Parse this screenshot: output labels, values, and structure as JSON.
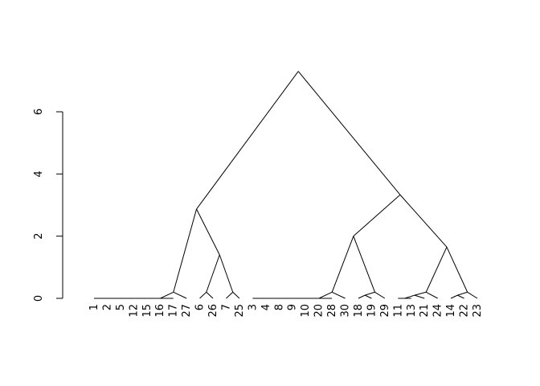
{
  "chart_data": {
    "type": "dendrogram",
    "title": "",
    "xlabel": "",
    "ylabel": "",
    "ylim": [
      0,
      7.5
    ],
    "y_ticks": [
      0,
      2,
      4,
      6
    ],
    "y_tick_labels": [
      "0",
      "2",
      "4",
      "6"
    ],
    "leaves": [
      "1",
      "2",
      "5",
      "12",
      "15",
      "16",
      "17",
      "27",
      "6",
      "26",
      "7",
      "25",
      "3",
      "4",
      "8",
      "9",
      "10",
      "20",
      "28",
      "30",
      "18",
      "19",
      "29",
      "11",
      "13",
      "21",
      "24",
      "14",
      "22",
      "23"
    ],
    "merges": [
      {
        "children": [
          "L:1",
          "L:2"
        ],
        "height": 0
      },
      {
        "children": [
          "M:1",
          "L:5"
        ],
        "height": 0
      },
      {
        "children": [
          "M:2",
          "L:12"
        ],
        "height": 0
      },
      {
        "children": [
          "M:3",
          "L:15"
        ],
        "height": 0
      },
      {
        "children": [
          "M:4",
          "L:16"
        ],
        "height": 0
      },
      {
        "children": [
          "M:5",
          "L:17"
        ],
        "height": 0
      },
      {
        "children": [
          "L:27",
          "M:6"
        ],
        "height": 0.2
      },
      {
        "children": [
          "L:6",
          "L:26"
        ],
        "height": 0.2
      },
      {
        "children": [
          "L:7",
          "L:25"
        ],
        "height": 0.2
      },
      {
        "children": [
          "M:8",
          "M:9"
        ],
        "height": 1.4
      },
      {
        "children": [
          "M:7",
          "M:10"
        ],
        "height": 2.87
      },
      {
        "children": [
          "L:3",
          "L:4"
        ],
        "height": 0
      },
      {
        "children": [
          "M:12",
          "L:8"
        ],
        "height": 0
      },
      {
        "children": [
          "M:13",
          "L:9"
        ],
        "height": 0
      },
      {
        "children": [
          "M:14",
          "L:10"
        ],
        "height": 0
      },
      {
        "children": [
          "M:15",
          "L:20"
        ],
        "height": 0
      },
      {
        "children": [
          "M:16",
          "L:28"
        ],
        "height": 0
      },
      {
        "children": [
          "L:30",
          "M:17"
        ],
        "height": 0.2
      },
      {
        "children": [
          "L:18",
          "L:19"
        ],
        "height": 0.1
      },
      {
        "children": [
          "L:29",
          "M:19"
        ],
        "height": 0.2
      },
      {
        "children": [
          "M:18",
          "M:20"
        ],
        "height": 2.0
      },
      {
        "children": [
          "L:11",
          "L:13"
        ],
        "height": 0
      },
      {
        "children": [
          "M:22",
          "L:21"
        ],
        "height": 0.1
      },
      {
        "children": [
          "L:24",
          "M:23"
        ],
        "height": 0.2
      },
      {
        "children": [
          "L:14",
          "L:22"
        ],
        "height": 0.1
      },
      {
        "children": [
          "L:23",
          "M:25"
        ],
        "height": 0.2
      },
      {
        "children": [
          "M:24",
          "M:26"
        ],
        "height": 1.65
      },
      {
        "children": [
          "M:21",
          "M:27"
        ],
        "height": 3.33
      },
      {
        "children": [
          "M:11",
          "M:28"
        ],
        "height": 7.3
      }
    ]
  }
}
